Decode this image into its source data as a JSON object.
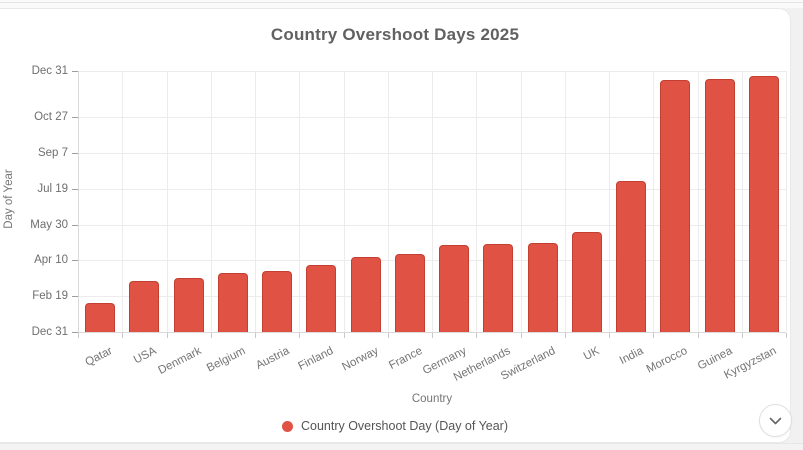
{
  "chart_data": {
    "type": "bar",
    "title": "Country Overshoot Days 2025",
    "xlabel": "Country",
    "ylabel": "Day of Year",
    "legend": [
      "Country Overshoot Day (Day of Year)"
    ],
    "legend_position": "bottom",
    "grid": true,
    "bar_color": "#e05243",
    "categories": [
      "Qatar",
      "USA",
      "Denmark",
      "Belgium",
      "Austria",
      "Finland",
      "Norway",
      "France",
      "Germany",
      "Netherlands",
      "Switzerland",
      "UK",
      "India",
      "Morocco",
      "Guinea",
      "Kyrgyzstan"
    ],
    "values": [
      40,
      71,
      75,
      82,
      86,
      93,
      105,
      109,
      121,
      123,
      125,
      140,
      211,
      352,
      354,
      358
    ],
    "value_unit": "day of year",
    "ylim": [
      0,
      365
    ],
    "y_ticks": [
      {
        "value": 0,
        "label": "Dec 31"
      },
      {
        "value": 50,
        "label": "Feb 19"
      },
      {
        "value": 100,
        "label": "Apr 10"
      },
      {
        "value": 150,
        "label": "May 30"
      },
      {
        "value": 200,
        "label": "Jul 19"
      },
      {
        "value": 250,
        "label": "Sep 7"
      },
      {
        "value": 300,
        "label": "Oct 27"
      },
      {
        "value": 365,
        "label": "Dec 31"
      }
    ]
  },
  "controls": {
    "scroll_down_icon": "chevron-down-icon"
  },
  "colors": {
    "bar": "#e05243",
    "title_text": "#616161",
    "axis_text": "#757575",
    "gridline": "#ececec",
    "card_background": "#ffffff",
    "page_background": "#f1f1f1"
  }
}
